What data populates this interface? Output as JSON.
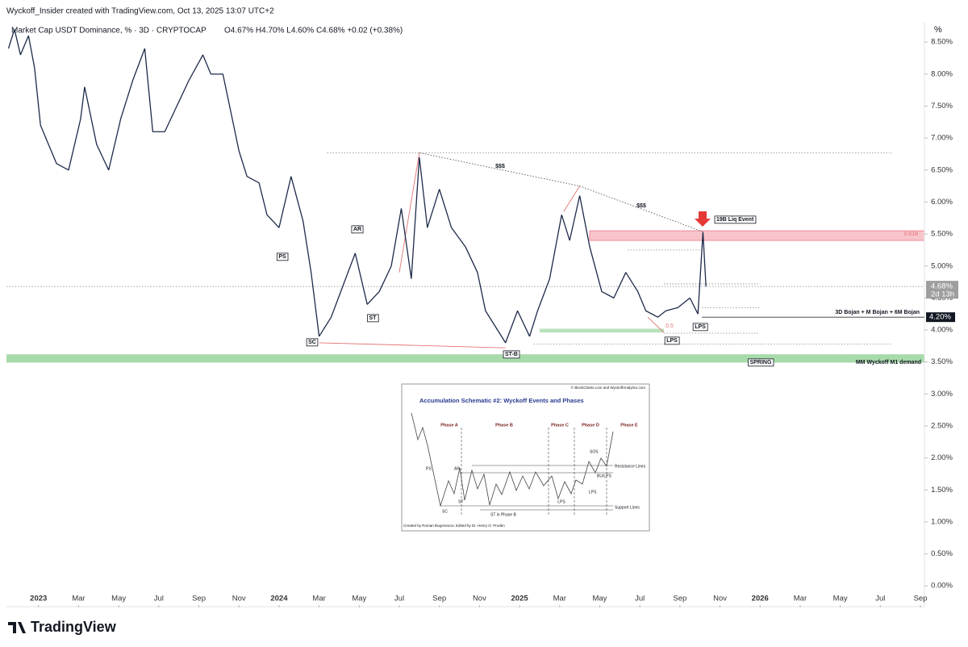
{
  "header": "Wyckoff_Insider created with TradingView.com, Oct 13, 2025 13:07 UTC+2",
  "brand": "TradingView",
  "chart_data": {
    "type": "line",
    "title": "Market Cap USDT Dominance, % · 3D · CRYPTOCAP",
    "ohlc": "O4.67% H4.70% L4.60% C4.68% +0.02 (+0.38%)",
    "unit": "%",
    "color": "#1e2a4a",
    "x": [
      -1.5,
      -1.2,
      -0.9,
      -0.5,
      -0.2,
      0.1,
      0.5,
      0.9,
      1.5,
      2.1,
      2.3,
      2.9,
      3.5,
      4.1,
      4.7,
      5.3,
      5.7,
      6.3,
      6.9,
      7.5,
      8.2,
      8.6,
      9.2,
      9.6,
      10.0,
      10.4,
      11.0,
      11.4,
      12.0,
      12.6,
      13.2,
      13.6,
      14.0,
      14.6,
      15.2,
      15.8,
      16.4,
      17.0,
      17.6,
      18.1,
      18.6,
      19.0,
      19.4,
      20.0,
      20.6,
      21.3,
      21.9,
      22.3,
      22.9,
      23.3,
      23.9,
      24.5,
      24.9,
      25.5,
      26.1,
      26.5,
      27.0,
      27.5,
      28.1,
      28.7,
      29.3,
      29.9,
      30.3,
      30.9,
      31.3,
      31.9,
      32.5,
      32.9,
      33.15,
      33.3
    ],
    "values": [
      8.4,
      8.7,
      8.3,
      8.6,
      8.1,
      7.2,
      6.9,
      6.6,
      6.5,
      7.3,
      7.8,
      6.9,
      6.5,
      7.3,
      7.9,
      8.4,
      7.1,
      7.1,
      7.5,
      7.9,
      8.3,
      8.0,
      8.0,
      7.4,
      6.8,
      6.4,
      6.3,
      5.8,
      5.6,
      6.4,
      5.7,
      4.9,
      3.9,
      4.2,
      4.7,
      5.2,
      4.4,
      4.6,
      5.0,
      5.9,
      4.8,
      6.7,
      5.6,
      6.2,
      5.6,
      5.3,
      4.9,
      4.3,
      4.0,
      3.8,
      4.3,
      3.9,
      4.3,
      4.8,
      5.8,
      5.4,
      6.1,
      5.3,
      4.6,
      4.5,
      4.9,
      4.6,
      4.3,
      4.2,
      4.3,
      4.35,
      4.5,
      4.25,
      5.53,
      4.68
    ],
    "xlim": [
      -1.6,
      44.2
    ],
    "ylim": [
      -0.3,
      8.78
    ],
    "xticks": [
      {
        "value": 0,
        "label": "2023"
      },
      {
        "value": 2,
        "label": "Mar"
      },
      {
        "value": 4,
        "label": "May"
      },
      {
        "value": 6,
        "label": "Jul"
      },
      {
        "value": 8,
        "label": "Sep"
      },
      {
        "value": 10,
        "label": "Nov"
      },
      {
        "value": 12,
        "label": "2024"
      },
      {
        "value": 14,
        "label": "Mar"
      },
      {
        "value": 16,
        "label": "May"
      },
      {
        "value": 18,
        "label": "Jul"
      },
      {
        "value": 20,
        "label": "Sep"
      },
      {
        "value": 22,
        "label": "Nov"
      },
      {
        "value": 24,
        "label": "2025"
      },
      {
        "value": 26,
        "label": "Mar"
      },
      {
        "value": 28,
        "label": "May"
      },
      {
        "value": 30,
        "label": "Jul"
      },
      {
        "value": 32,
        "label": "Sep"
      },
      {
        "value": 34,
        "label": "Nov"
      },
      {
        "value": 36,
        "label": "2026"
      },
      {
        "value": 38,
        "label": "Mar"
      },
      {
        "value": 40,
        "label": "May"
      },
      {
        "value": 42,
        "label": "Jul"
      },
      {
        "value": 44,
        "label": "Sep"
      }
    ],
    "yticks": [
      {
        "value": 0,
        "label": "0.00%"
      },
      {
        "value": 0.5,
        "label": "0.50%"
      },
      {
        "value": 1,
        "label": "1.00%"
      },
      {
        "value": 1.5,
        "label": "1.50%"
      },
      {
        "value": 2,
        "label": "2.00%"
      },
      {
        "value": 2.5,
        "label": "2.50%"
      },
      {
        "value": 3,
        "label": "3.00%"
      },
      {
        "value": 3.5,
        "label": "3.50%"
      },
      {
        "value": 4,
        "label": "4.00%"
      },
      {
        "value": 4.5,
        "label": "4.50%"
      },
      {
        "value": 5,
        "label": "5.00%"
      },
      {
        "value": 5.5,
        "label": "5.50%"
      },
      {
        "value": 6,
        "label": "6.00%"
      },
      {
        "value": 6.5,
        "label": "6.50%"
      },
      {
        "value": 7,
        "label": "7.00%"
      },
      {
        "value": 7.5,
        "label": "7.50%"
      },
      {
        "value": 8,
        "label": "8.00%"
      },
      {
        "value": 8.5,
        "label": "8.50%"
      }
    ],
    "last_price": {
      "value": 4.68,
      "label": "4.68%"
    },
    "countdown": "2d 13h",
    "level_label": {
      "value": 4.2,
      "label": "4.20%"
    },
    "zones": [
      {
        "from": 5.4,
        "to": 5.55,
        "x": [
          27.5,
          44.2
        ],
        "color": "#f8c4cb"
      },
      {
        "from": 3.49,
        "to": 3.62,
        "x": [
          -1.6,
          44.2
        ],
        "color": "#a8dbab"
      },
      {
        "from": 3.96,
        "to": 4.02,
        "x": [
          25.0,
          31.2
        ],
        "color": "#b9e2bb"
      }
    ],
    "levels": [
      {
        "y": 6.77,
        "x": [
          14.4,
          42.6
        ]
      },
      {
        "y": 3.78,
        "x": [
          24.7,
          42.6
        ]
      },
      {
        "y": 3.95,
        "x": [
          31.2,
          36.0
        ]
      },
      {
        "y": 4.35,
        "x": [
          33.1,
          36.0
        ]
      },
      {
        "y": 4.72,
        "x": [
          31.2,
          36.0
        ]
      },
      {
        "y": 5.25,
        "x": [
          29.4,
          33.1
        ]
      },
      {
        "y": 4.68,
        "x": [
          -1.6,
          44.2
        ]
      },
      {
        "y": 4.2,
        "x": [
          33.1,
          44.2
        ]
      }
    ],
    "trendlines": [
      {
        "x": [
          14.0,
          23.3
        ],
        "y": [
          3.8,
          3.72
        ],
        "color": "#e57373"
      },
      {
        "x": [
          18.0,
          19.0
        ],
        "y": [
          4.9,
          6.77
        ],
        "color": "#e57373"
      },
      {
        "x": [
          26.2,
          27.0
        ],
        "y": [
          5.85,
          6.25
        ],
        "color": "#e57373"
      },
      {
        "x": [
          30.4,
          31.2
        ],
        "y": [
          4.2,
          3.96
        ],
        "color": "#e57373"
      },
      {
        "x": [
          19.0,
          27.0,
          33.2
        ],
        "y": [
          6.77,
          6.25,
          5.53
        ],
        "color": "#555"
      }
    ],
    "annotations": [
      "$$$",
      "$$$",
      "19B Liq Event",
      "PS",
      "AR",
      "SC",
      "ST",
      "ST-B",
      "LPS",
      "LPS",
      "SPRING",
      "0.5",
      "0.618",
      "3D Bojan + M Bojan + 6M Bojan",
      "MM Wyckoff M1 demand"
    ]
  },
  "inset": {
    "credit": "© BlockCharts.com and WyckoffAnalytics.com",
    "title": "Accumulation Schematic #2: Wyckoff Events and Phases",
    "phases": [
      "Phase A",
      "Phase B",
      "Phase C",
      "Phase D",
      "Phase E"
    ],
    "labels": [
      "PS",
      "AR",
      "SC",
      "ST",
      "ST in Phase B",
      "LPS",
      "SOS",
      "BU/LPS",
      "LPS",
      "Resistance Lines",
      "Support Lines"
    ],
    "footer": "Created by Roman Bogomazov. Edited by Dr. Henry O. Pruden"
  }
}
